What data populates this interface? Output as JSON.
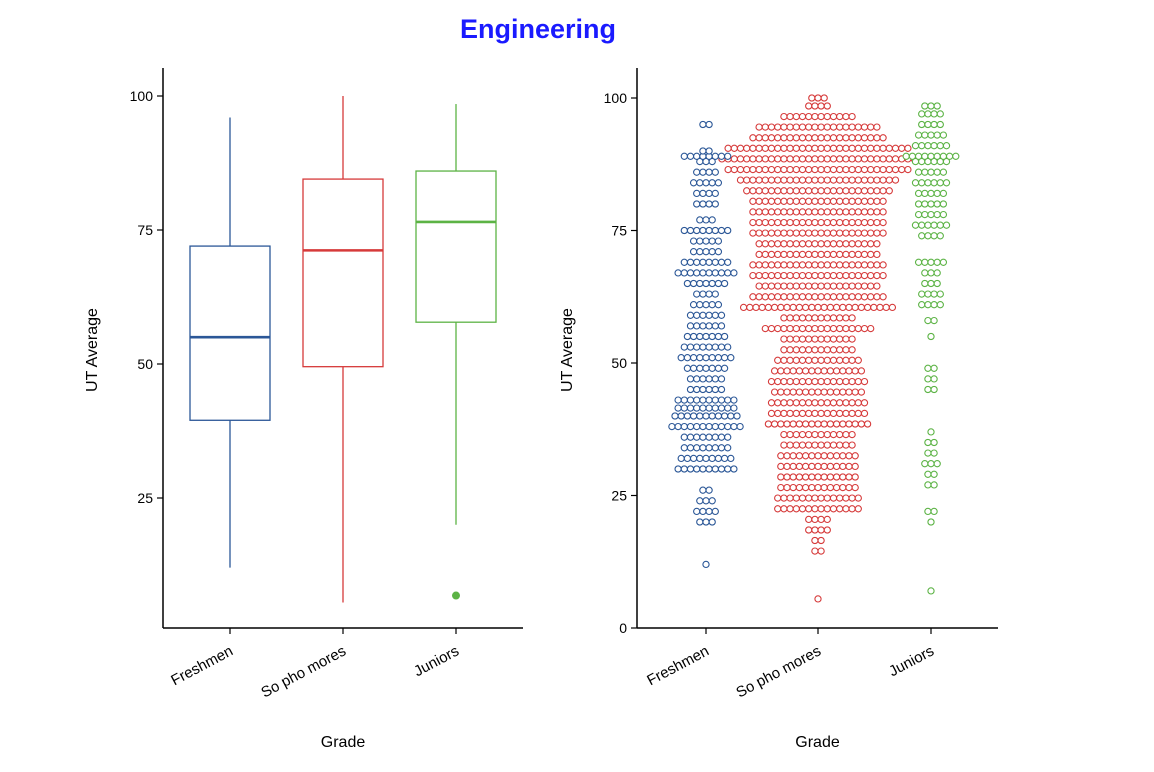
{
  "title": "Engineering",
  "colors": {
    "title": "#1a1aff",
    "Freshmen": "#2b5797",
    "Sophomores": "#d63a3a",
    "Juniors": "#5cb345"
  },
  "chart_data": [
    {
      "type": "boxplot",
      "xlabel": "Grade",
      "ylabel": "UT  Average",
      "ylim": [
        0,
        105
      ],
      "yticks": [
        25,
        50,
        75,
        100
      ],
      "categories": [
        "Freshmen",
        "Sophomores",
        "Juniors"
      ],
      "category_labels": [
        "Freshmen",
        "So pho mores",
        "Juniors"
      ],
      "boxes": [
        {
          "name": "Freshmen",
          "min": 12,
          "q1": 39.5,
          "median": 55,
          "q3": 72,
          "max": 96,
          "outliers": []
        },
        {
          "name": "Sophomores",
          "min": 5.5,
          "q1": 49.5,
          "median": 71.2,
          "q3": 84.5,
          "max": 100,
          "outliers": []
        },
        {
          "name": "Juniors",
          "min": 20,
          "q1": 57.8,
          "median": 76.5,
          "q3": 86,
          "max": 98.5,
          "outliers": [
            6.8
          ]
        }
      ]
    },
    {
      "type": "dotplot",
      "xlabel": "Grade",
      "ylabel": "UT  Average",
      "ylim": [
        0,
        105
      ],
      "yticks": [
        0,
        25,
        50,
        75,
        100
      ],
      "categories": [
        "Freshmen",
        "Sophomores",
        "Juniors"
      ],
      "category_labels": [
        "Freshmen",
        "So pho mores",
        "Juniors"
      ],
      "series": [
        {
          "name": "Freshmen",
          "bins": [
            {
              "y": 12,
              "n": 1
            },
            {
              "y": 20,
              "n": 3
            },
            {
              "y": 22,
              "n": 4
            },
            {
              "y": 24,
              "n": 3
            },
            {
              "y": 26,
              "n": 2
            },
            {
              "y": 30,
              "n": 10
            },
            {
              "y": 32,
              "n": 9
            },
            {
              "y": 34,
              "n": 8
            },
            {
              "y": 36,
              "n": 8
            },
            {
              "y": 38,
              "n": 12
            },
            {
              "y": 40,
              "n": 11
            },
            {
              "y": 41.5,
              "n": 10
            },
            {
              "y": 43,
              "n": 10
            },
            {
              "y": 45,
              "n": 6
            },
            {
              "y": 47,
              "n": 6
            },
            {
              "y": 49,
              "n": 7
            },
            {
              "y": 51,
              "n": 9
            },
            {
              "y": 53,
              "n": 8
            },
            {
              "y": 55,
              "n": 7
            },
            {
              "y": 57,
              "n": 6
            },
            {
              "y": 59,
              "n": 6
            },
            {
              "y": 61,
              "n": 5
            },
            {
              "y": 63,
              "n": 4
            },
            {
              "y": 65,
              "n": 7
            },
            {
              "y": 67,
              "n": 10
            },
            {
              "y": 69,
              "n": 8
            },
            {
              "y": 71,
              "n": 5
            },
            {
              "y": 73,
              "n": 5
            },
            {
              "y": 75,
              "n": 8
            },
            {
              "y": 77,
              "n": 3
            },
            {
              "y": 80,
              "n": 4
            },
            {
              "y": 82,
              "n": 4
            },
            {
              "y": 84,
              "n": 5
            },
            {
              "y": 86,
              "n": 4
            },
            {
              "y": 88,
              "n": 3
            },
            {
              "y": 89,
              "n": 8
            },
            {
              "y": 90,
              "n": 2
            },
            {
              "y": 95,
              "n": 2
            }
          ]
        },
        {
          "name": "Sophomores",
          "bins": [
            {
              "y": 5.5,
              "n": 1
            },
            {
              "y": 14.5,
              "n": 2
            },
            {
              "y": 16.5,
              "n": 2
            },
            {
              "y": 18.5,
              "n": 4
            },
            {
              "y": 20.5,
              "n": 4
            },
            {
              "y": 22.5,
              "n": 14
            },
            {
              "y": 24.5,
              "n": 14
            },
            {
              "y": 26.5,
              "n": 13
            },
            {
              "y": 28.5,
              "n": 13
            },
            {
              "y": 30.5,
              "n": 13
            },
            {
              "y": 32.5,
              "n": 13
            },
            {
              "y": 34.5,
              "n": 12
            },
            {
              "y": 36.5,
              "n": 12
            },
            {
              "y": 38.5,
              "n": 17
            },
            {
              "y": 40.5,
              "n": 16
            },
            {
              "y": 42.5,
              "n": 16
            },
            {
              "y": 44.5,
              "n": 15
            },
            {
              "y": 46.5,
              "n": 16
            },
            {
              "y": 48.5,
              "n": 15
            },
            {
              "y": 50.5,
              "n": 14
            },
            {
              "y": 52.5,
              "n": 12
            },
            {
              "y": 54.5,
              "n": 12
            },
            {
              "y": 56.5,
              "n": 18
            },
            {
              "y": 58.5,
              "n": 12
            },
            {
              "y": 60.5,
              "n": 25
            },
            {
              "y": 62.5,
              "n": 22
            },
            {
              "y": 64.5,
              "n": 20
            },
            {
              "y": 66.5,
              "n": 22
            },
            {
              "y": 68.5,
              "n": 22
            },
            {
              "y": 70.5,
              "n": 20
            },
            {
              "y": 72.5,
              "n": 20
            },
            {
              "y": 74.5,
              "n": 22
            },
            {
              "y": 76.5,
              "n": 22
            },
            {
              "y": 78.5,
              "n": 22
            },
            {
              "y": 80.5,
              "n": 22
            },
            {
              "y": 82.5,
              "n": 24
            },
            {
              "y": 84.5,
              "n": 26
            },
            {
              "y": 86.5,
              "n": 30
            },
            {
              "y": 88.5,
              "n": 32
            },
            {
              "y": 90.5,
              "n": 30
            },
            {
              "y": 92.5,
              "n": 22
            },
            {
              "y": 94.5,
              "n": 20
            },
            {
              "y": 96.5,
              "n": 12
            },
            {
              "y": 98.5,
              "n": 4
            },
            {
              "y": 100,
              "n": 3
            }
          ]
        },
        {
          "name": "Juniors",
          "bins": [
            {
              "y": 7,
              "n": 1
            },
            {
              "y": 20,
              "n": 1
            },
            {
              "y": 22,
              "n": 2
            },
            {
              "y": 27,
              "n": 2
            },
            {
              "y": 29,
              "n": 2
            },
            {
              "y": 31,
              "n": 3
            },
            {
              "y": 33,
              "n": 2
            },
            {
              "y": 35,
              "n": 2
            },
            {
              "y": 37,
              "n": 1
            },
            {
              "y": 45,
              "n": 2
            },
            {
              "y": 47,
              "n": 2
            },
            {
              "y": 49,
              "n": 2
            },
            {
              "y": 55,
              "n": 1
            },
            {
              "y": 58,
              "n": 2
            },
            {
              "y": 61,
              "n": 4
            },
            {
              "y": 63,
              "n": 4
            },
            {
              "y": 65,
              "n": 3
            },
            {
              "y": 67,
              "n": 3
            },
            {
              "y": 69,
              "n": 5
            },
            {
              "y": 74,
              "n": 4
            },
            {
              "y": 76,
              "n": 6
            },
            {
              "y": 78,
              "n": 5
            },
            {
              "y": 80,
              "n": 5
            },
            {
              "y": 82,
              "n": 5
            },
            {
              "y": 84,
              "n": 6
            },
            {
              "y": 86,
              "n": 5
            },
            {
              "y": 88,
              "n": 6
            },
            {
              "y": 89,
              "n": 9
            },
            {
              "y": 91,
              "n": 6
            },
            {
              "y": 93,
              "n": 5
            },
            {
              "y": 95,
              "n": 4
            },
            {
              "y": 97,
              "n": 4
            },
            {
              "y": 98.5,
              "n": 3
            }
          ]
        }
      ]
    }
  ]
}
